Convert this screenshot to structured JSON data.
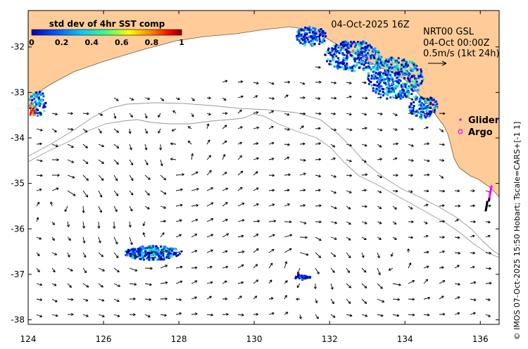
{
  "map": {
    "date_title": "04-Oct-2025 16Z",
    "product_lines": [
      "NRT00 GSL",
      "04-Oct 00:00Z",
      "0.5m/s (1kt 24h)"
    ],
    "credit": "© IMOS 07-Oct-2025 15:50 Hobart; Tscale=CARS+[-1 1]",
    "lon_ticks": [
      "124",
      "126",
      "128",
      "130",
      "132",
      "134",
      "136"
    ],
    "lat_ticks": [
      "-32",
      "-33",
      "-34",
      "-35",
      "-36",
      "-37",
      "-38"
    ],
    "lon_range": [
      124,
      136.5
    ],
    "lat_range": [
      -38.1,
      -31.2
    ],
    "land_color": "#ffcc99",
    "sea_color": "#ffffff"
  },
  "colorbar": {
    "title": "std dev of 4hr SST comp",
    "ticks": [
      "0",
      "0.2",
      "0.4",
      "0.6",
      "0.8",
      "1"
    ],
    "range": [
      0,
      1
    ],
    "colors": [
      "#0000b4",
      "#0050ff",
      "#00c8ff",
      "#40ff80",
      "#ffff00",
      "#ff8000",
      "#ff0000",
      "#800000"
    ]
  },
  "legend": {
    "items": [
      {
        "label": "Glider",
        "marker": "dot",
        "color": "#ff00ff"
      },
      {
        "label": "Argo",
        "marker": "circle",
        "color": "#ff00ff"
      }
    ]
  }
}
